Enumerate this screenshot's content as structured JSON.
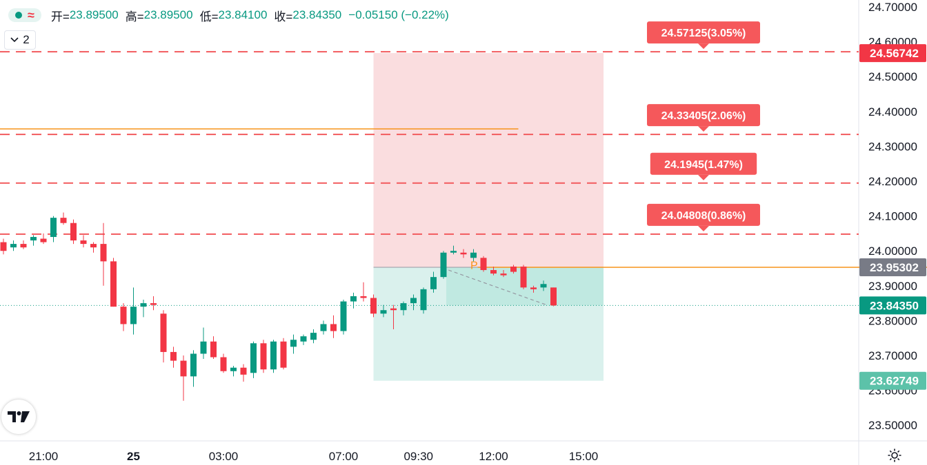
{
  "header": {
    "interval_badge": "2",
    "open_label": "开=",
    "open_value": "23.89500",
    "high_label": "高=",
    "high_value": "23.89500",
    "low_label": "低=",
    "low_value": "23.84100",
    "close_label": "收=",
    "close_value": "23.84350",
    "change": "−0.05150 (−0.22%)"
  },
  "colors": {
    "up": "#089981",
    "down": "#f23645",
    "target_label_bg": "#f5585b",
    "profit_zone": "#fad9dc",
    "loss_zone": "#d6f0eb",
    "entry_line": "#f7931a",
    "current_price_bg": "#089981",
    "entry_price_bg": "#787b86",
    "stop_price_bg": "#5cc2a9"
  },
  "icons": [
    "status-dot-icon",
    "wave-icon",
    "chevron-down-icon",
    "tradingview-logo",
    "settings-gear-icon"
  ],
  "chart_data": {
    "type": "candlestick",
    "ylim": [
      23.45,
      24.72
    ],
    "y_ticks": [
      "24.70000",
      "24.60000",
      "24.50000",
      "24.40000",
      "24.30000",
      "24.20000",
      "24.10000",
      "24.00000",
      "23.90000",
      "23.80000",
      "23.70000",
      "23.60000",
      "23.50000"
    ],
    "x_ticks": [
      "21:00",
      "25",
      "03:00",
      "07:00",
      "09:30",
      "12:00",
      "15:00"
    ],
    "bar_interval_minutes": 20,
    "candles": [
      {
        "t": "19:40",
        "o": 24.025,
        "h": 24.035,
        "l": 23.99,
        "c": 24.0
      },
      {
        "t": "20:00",
        "o": 24.01,
        "h": 24.03,
        "l": 24.0,
        "c": 24.02
      },
      {
        "t": "20:20",
        "o": 24.02,
        "h": 24.03,
        "l": 24.005,
        "c": 24.01
      },
      {
        "t": "20:40",
        "o": 24.03,
        "h": 24.045,
        "l": 24.015,
        "c": 24.04
      },
      {
        "t": "21:00",
        "o": 24.035,
        "h": 24.05,
        "l": 24.02,
        "c": 24.025
      },
      {
        "t": "21:20",
        "o": 24.04,
        "h": 24.1,
        "l": 24.025,
        "c": 24.095
      },
      {
        "t": "21:40",
        "o": 24.095,
        "h": 24.11,
        "l": 24.075,
        "c": 24.08
      },
      {
        "t": "22:00",
        "o": 24.08,
        "h": 24.09,
        "l": 24.02,
        "c": 24.03
      },
      {
        "t": "22:20",
        "o": 24.03,
        "h": 24.045,
        "l": 24.01,
        "c": 24.02
      },
      {
        "t": "22:40",
        "o": 24.02,
        "h": 24.025,
        "l": 23.995,
        "c": 24.01
      },
      {
        "t": "23:00",
        "o": 24.02,
        "h": 24.08,
        "l": 23.9,
        "c": 23.97
      },
      {
        "t": "23:20",
        "o": 23.97,
        "h": 23.98,
        "l": 23.84,
        "c": 23.84
      },
      {
        "t": "23:40",
        "o": 23.84,
        "h": 23.85,
        "l": 23.77,
        "c": 23.79
      },
      {
        "t": "00:00",
        "o": 23.79,
        "h": 23.895,
        "l": 23.76,
        "c": 23.84
      },
      {
        "t": "00:20",
        "o": 23.84,
        "h": 23.86,
        "l": 23.81,
        "c": 23.85
      },
      {
        "t": "00:40",
        "o": 23.85,
        "h": 23.87,
        "l": 23.83,
        "c": 23.845
      },
      {
        "t": "01:00",
        "o": 23.82,
        "h": 23.83,
        "l": 23.68,
        "c": 23.71
      },
      {
        "t": "01:20",
        "o": 23.71,
        "h": 23.725,
        "l": 23.665,
        "c": 23.685
      },
      {
        "t": "01:40",
        "o": 23.685,
        "h": 23.7,
        "l": 23.57,
        "c": 23.64
      },
      {
        "t": "02:00",
        "o": 23.64,
        "h": 23.715,
        "l": 23.61,
        "c": 23.705
      },
      {
        "t": "02:20",
        "o": 23.705,
        "h": 23.78,
        "l": 23.69,
        "c": 23.74
      },
      {
        "t": "02:40",
        "o": 23.74,
        "h": 23.755,
        "l": 23.69,
        "c": 23.695
      },
      {
        "t": "03:00",
        "o": 23.695,
        "h": 23.705,
        "l": 23.65,
        "c": 23.655
      },
      {
        "t": "03:20",
        "o": 23.655,
        "h": 23.67,
        "l": 23.64,
        "c": 23.665
      },
      {
        "t": "03:40",
        "o": 23.665,
        "h": 23.675,
        "l": 23.625,
        "c": 23.645
      },
      {
        "t": "04:00",
        "o": 23.65,
        "h": 23.74,
        "l": 23.635,
        "c": 23.735
      },
      {
        "t": "04:20",
        "o": 23.735,
        "h": 23.745,
        "l": 23.65,
        "c": 23.66
      },
      {
        "t": "04:40",
        "o": 23.66,
        "h": 23.745,
        "l": 23.65,
        "c": 23.74
      },
      {
        "t": "05:00",
        "o": 23.74,
        "h": 23.75,
        "l": 23.66,
        "c": 23.665
      },
      {
        "t": "05:20",
        "o": 23.725,
        "h": 23.76,
        "l": 23.705,
        "c": 23.745
      },
      {
        "t": "05:40",
        "o": 23.74,
        "h": 23.76,
        "l": 23.73,
        "c": 23.755
      },
      {
        "t": "06:00",
        "o": 23.745,
        "h": 23.775,
        "l": 23.735,
        "c": 23.765
      },
      {
        "t": "06:20",
        "o": 23.77,
        "h": 23.8,
        "l": 23.76,
        "c": 23.79
      },
      {
        "t": "06:40",
        "o": 23.79,
        "h": 23.815,
        "l": 23.75,
        "c": 23.77
      },
      {
        "t": "07:00",
        "o": 23.77,
        "h": 23.86,
        "l": 23.76,
        "c": 23.855
      },
      {
        "t": "07:20",
        "o": 23.855,
        "h": 23.88,
        "l": 23.835,
        "c": 23.87
      },
      {
        "t": "07:40",
        "o": 23.87,
        "h": 23.91,
        "l": 23.855,
        "c": 23.865
      },
      {
        "t": "08:00",
        "o": 23.865,
        "h": 23.875,
        "l": 23.81,
        "c": 23.82
      },
      {
        "t": "08:20",
        "o": 23.82,
        "h": 23.845,
        "l": 23.81,
        "c": 23.83
      },
      {
        "t": "08:40",
        "o": 23.835,
        "h": 23.845,
        "l": 23.775,
        "c": 23.83
      },
      {
        "t": "09:00",
        "o": 23.83,
        "h": 23.855,
        "l": 23.815,
        "c": 23.85
      },
      {
        "t": "09:20",
        "o": 23.85,
        "h": 23.875,
        "l": 23.83,
        "c": 23.865
      },
      {
        "t": "09:40",
        "o": 23.83,
        "h": 23.895,
        "l": 23.82,
        "c": 23.89
      },
      {
        "t": "10:00",
        "o": 23.89,
        "h": 23.94,
        "l": 23.88,
        "c": 23.925
      },
      {
        "t": "10:20",
        "o": 23.925,
        "h": 24.0,
        "l": 23.92,
        "c": 23.995
      },
      {
        "t": "10:40",
        "o": 23.995,
        "h": 24.015,
        "l": 23.99,
        "c": 24.0
      },
      {
        "t": "11:00",
        "o": 23.995,
        "h": 24.005,
        "l": 23.98,
        "c": 23.99
      },
      {
        "t": "11:20",
        "o": 23.98,
        "h": 24.005,
        "l": 23.97,
        "c": 23.995
      },
      {
        "t": "11:40",
        "o": 23.98,
        "h": 23.985,
        "l": 23.94,
        "c": 23.945
      },
      {
        "t": "12:00",
        "o": 23.945,
        "h": 23.955,
        "l": 23.93,
        "c": 23.935
      },
      {
        "t": "12:20",
        "o": 23.935,
        "h": 23.945,
        "l": 23.925,
        "c": 23.93
      },
      {
        "t": "12:40",
        "o": 23.955,
        "h": 23.96,
        "l": 23.935,
        "c": 23.94
      },
      {
        "t": "13:00",
        "o": 23.955,
        "h": 23.96,
        "l": 23.89,
        "c": 23.895
      },
      {
        "t": "13:20",
        "o": 23.895,
        "h": 23.9,
        "l": 23.88,
        "c": 23.89
      },
      {
        "t": "13:40",
        "o": 23.895,
        "h": 23.915,
        "l": 23.885,
        "c": 23.905
      },
      {
        "t": "14:00",
        "o": 23.895,
        "h": 23.895,
        "l": 23.841,
        "c": 23.8435
      }
    ],
    "position_tool": {
      "entry": 23.95302,
      "stop": 23.62749,
      "target": 24.56742,
      "start_time": "08:00",
      "end_time": "15:40"
    },
    "orange_line": {
      "price": 24.35,
      "start_time": "19:40",
      "end_time": "08:00"
    },
    "entry_line": {
      "price": 23.95302,
      "start_time": "14:00",
      "end_time": "20:00"
    },
    "p_marker": {
      "text": "P",
      "time": "11:00",
      "price": 23.96
    },
    "dashed_trendline": [
      {
        "time": "10:30",
        "price": 23.945
      },
      {
        "time": "14:00",
        "price": 23.845
      }
    ],
    "take_profit_levels": [
      {
        "price": 24.57125,
        "label": "24.57125(3.05%)"
      },
      {
        "price": 24.33405,
        "label": "24.33405(2.06%)"
      },
      {
        "price": 24.1945,
        "label": "24.1945(1.47%)"
      },
      {
        "price": 24.04808,
        "label": "24.04808(0.86%)"
      }
    ],
    "price_badges": [
      {
        "price": 24.56742,
        "label": "24.56742",
        "kind": "target"
      },
      {
        "price": 23.95302,
        "label": "23.95302",
        "kind": "entry"
      },
      {
        "price": 23.8435,
        "label": "23.84350",
        "kind": "current"
      },
      {
        "price": 23.62749,
        "label": "23.62749",
        "kind": "stop"
      }
    ],
    "current_price": 23.8435
  }
}
